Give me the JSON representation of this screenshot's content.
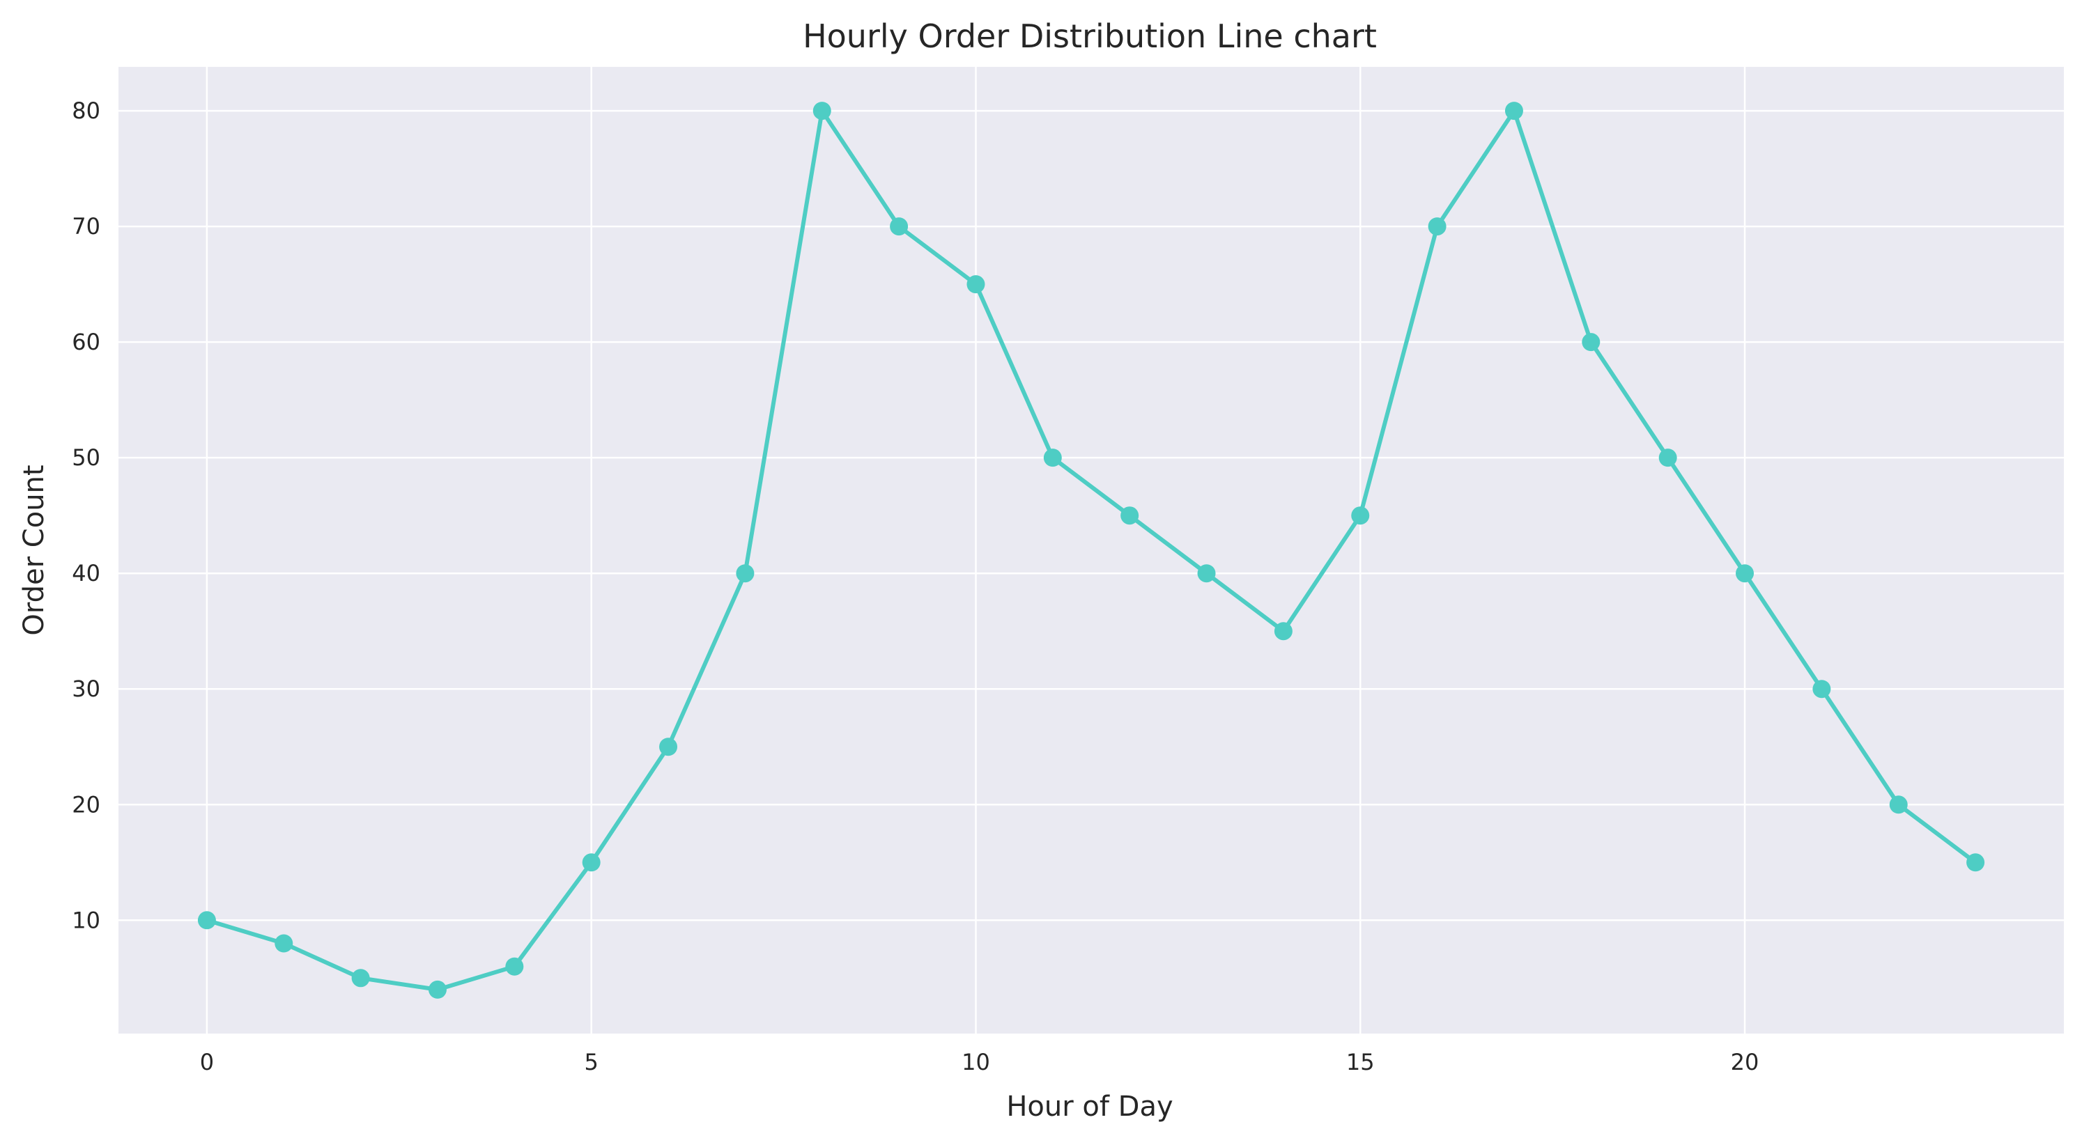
{
  "chart_data": {
    "type": "line",
    "title": "Hourly Order Distribution Line chart",
    "xlabel": "Hour of Day",
    "ylabel": "Order Count",
    "x": [
      0,
      1,
      2,
      3,
      4,
      5,
      6,
      7,
      8,
      9,
      10,
      11,
      12,
      13,
      14,
      15,
      16,
      17,
      18,
      19,
      20,
      21,
      22,
      23
    ],
    "series": [
      {
        "values": [
          10,
          8,
          5,
          4,
          6,
          15,
          25,
          40,
          80,
          70,
          65,
          50,
          45,
          40,
          35,
          45,
          70,
          80,
          60,
          50,
          40,
          30,
          20,
          15
        ]
      }
    ],
    "xlim": [
      -1.15,
      24.15
    ],
    "ylim": [
      0.2,
      83.8
    ],
    "xticks": [
      0,
      5,
      10,
      15,
      20
    ],
    "yticks": [
      10,
      20,
      30,
      40,
      50,
      60,
      70,
      80
    ],
    "grid": true,
    "markers": true,
    "colors": {
      "line": "#4ecdc4",
      "plot_background": "#eaeaf2",
      "grid": "#ffffff",
      "text": "#262626"
    }
  }
}
